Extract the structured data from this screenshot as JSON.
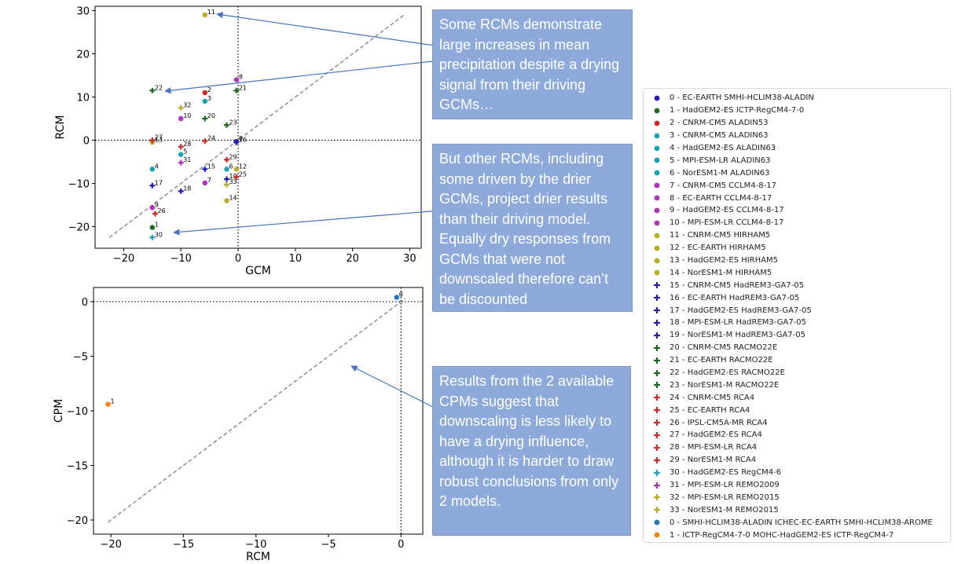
{
  "callouts": [
    "Some RCMs demonstrate large increases in mean precipitation despite a drying signal from their driving GCMs…",
    "But other RCMs, including some driven by the drier GCMs, project drier results than their driving model. Equally dry responses from GCMs that were not downscaled therefore can’t be discounted",
    "Results from the 2 available CPMs suggest that downscaling is less likely to have a drying influence, although it is harder to draw robust conclusions from only 2 models."
  ],
  "legend": [
    {
      "label": "0 - EC-EARTH SMHI-HCLIM38-ALADIN",
      "color": "#1f1fb4",
      "marker": "dot"
    },
    {
      "label": "1 - HadGEM2-ES ICTP-RegCM4-7-0",
      "color": "#1a6b1a",
      "marker": "dot"
    },
    {
      "label": "2 - CNRM-CM5 ALADIN53",
      "color": "#d62728",
      "marker": "dot"
    },
    {
      "label": "3 - CNRM-CM5 ALADIN63",
      "color": "#17a2b8",
      "marker": "dot"
    },
    {
      "label": "4 - HadGEM2-ES ALADIN63",
      "color": "#17a2b8",
      "marker": "dot"
    },
    {
      "label": "5 - MPI-ESM-LR ALADIN63",
      "color": "#17a2b8",
      "marker": "dot"
    },
    {
      "label": "6 - NorESM1-M ALADIN63",
      "color": "#17a2b8",
      "marker": "dot"
    },
    {
      "label": "7 - CNRM-CM5 CCLM4-8-17",
      "color": "#b02ec0",
      "marker": "dot"
    },
    {
      "label": "8 - EC-EARTH CCLM4-8-17",
      "color": "#b02ec0",
      "marker": "dot"
    },
    {
      "label": "9 - HadGEM2-ES CCLM4-8-17",
      "color": "#b02ec0",
      "marker": "dot"
    },
    {
      "label": "10 - MPI-ESM-LR CCLM4-8-17",
      "color": "#b02ec0",
      "marker": "dot"
    },
    {
      "label": "11 - CNRM-CM5 HIRHAM5",
      "color": "#bcaa22",
      "marker": "dot"
    },
    {
      "label": "12 - EC-EARTH HIRHAM5",
      "color": "#bcaa22",
      "marker": "dot"
    },
    {
      "label": "13 - HadGEM2-ES HIRHAM5",
      "color": "#bcaa22",
      "marker": "dot"
    },
    {
      "label": "14 - NorESM1-M HIRHAM5",
      "color": "#bcaa22",
      "marker": "dot"
    },
    {
      "label": "15 - CNRM-CM5 HadREM3-GA7-05",
      "color": "#1f1fb4",
      "marker": "plus"
    },
    {
      "label": "16 - EC-EARTH HadREM3-GA7-05",
      "color": "#1f1fb4",
      "marker": "plus"
    },
    {
      "label": "17 - HadGEM2-ES HadREM3-GA7-05",
      "color": "#1f1fb4",
      "marker": "plus"
    },
    {
      "label": "18 - MPI-ESM-LR HadREM3-GA7-05",
      "color": "#1f1fb4",
      "marker": "plus"
    },
    {
      "label": "19 - NorESM1-M HadREM3-GA7-05",
      "color": "#1f1fb4",
      "marker": "plus"
    },
    {
      "label": "20 - CNRM-CM5 RACMO22E",
      "color": "#1a6b1a",
      "marker": "plus"
    },
    {
      "label": "21 - EC-EARTH RACMO22E",
      "color": "#1a6b1a",
      "marker": "plus"
    },
    {
      "label": "22 - HadGEM2-ES RACMO22E",
      "color": "#1a6b1a",
      "marker": "plus"
    },
    {
      "label": "23 - NorESM1-M RACMO22E",
      "color": "#1a6b1a",
      "marker": "plus"
    },
    {
      "label": "24 - CNRM-CM5 RCA4",
      "color": "#d62728",
      "marker": "plus"
    },
    {
      "label": "25 - EC-EARTH RCA4",
      "color": "#d62728",
      "marker": "plus"
    },
    {
      "label": "26 - IPSL-CM5A-MR RCA4",
      "color": "#d62728",
      "marker": "plus"
    },
    {
      "label": "27 - HadGEM2-ES RCA4",
      "color": "#d62728",
      "marker": "plus"
    },
    {
      "label": "28 - MPI-ESM-LR RCA4",
      "color": "#d62728",
      "marker": "plus"
    },
    {
      "label": "29 - NorESM1-M RCA4",
      "color": "#d62728",
      "marker": "plus"
    },
    {
      "label": "30 - HadGEM2-ES RegCM4-6",
      "color": "#17a2b8",
      "marker": "plus"
    },
    {
      "label": "31 - MPI-ESM-LR REMO2009",
      "color": "#b02ec0",
      "marker": "plus"
    },
    {
      "label": "32 - MPI-ESM-LR REMO2015",
      "color": "#bcaa22",
      "marker": "plus"
    },
    {
      "label": "33 - NorESM1-M REMO2015",
      "color": "#bcaa22",
      "marker": "plus"
    },
    {
      "label": "0 - SMHI-HCLIM38-ALADIN ICHEC-EC-EARTH SMHI-HCLIM38-AROME",
      "color": "#1f77b4",
      "marker": "dot"
    },
    {
      "label": "1 - ICTP-RegCM4-7-0 MOHC-HadGEM2-ES ICTP-RegCM4-7",
      "color": "#ff7f0e",
      "marker": "dot"
    }
  ],
  "chart_data": [
    {
      "type": "scatter",
      "xlabel": "GCM",
      "ylabel": "RCM",
      "xlim": [
        -25,
        32
      ],
      "ylim": [
        -25,
        31
      ],
      "xticks": [
        -20,
        -10,
        0,
        10,
        20,
        30
      ],
      "yticks": [
        -20,
        -10,
        0,
        10,
        20,
        30
      ],
      "xtick_labels": [
        "−20",
        "−10",
        "0",
        "10",
        "20",
        "30"
      ],
      "ytick_labels": [
        "−20",
        "−10",
        "0",
        "10",
        "20",
        "30"
      ],
      "reference_line": [
        -22.5,
        29
      ],
      "points": [
        {
          "id": 0,
          "label": "0",
          "x": -0.3,
          "y": -0.3,
          "color": "#1f1fb4",
          "marker": "dot"
        },
        {
          "id": 1,
          "label": "1",
          "x": -15,
          "y": -20.2,
          "color": "#1a6b1a",
          "marker": "dot"
        },
        {
          "id": 2,
          "label": "2",
          "x": -5.8,
          "y": 11,
          "color": "#d62728",
          "marker": "dot"
        },
        {
          "id": 3,
          "label": "3",
          "x": -5.8,
          "y": 9,
          "color": "#17a2b8",
          "marker": "dot"
        },
        {
          "id": 4,
          "label": "4",
          "x": -15,
          "y": -6.7,
          "color": "#17a2b8",
          "marker": "dot"
        },
        {
          "id": 5,
          "label": "5",
          "x": -10,
          "y": -3.3,
          "color": "#17a2b8",
          "marker": "dot"
        },
        {
          "id": 6,
          "label": "6",
          "x": -2,
          "y": -6.7,
          "color": "#17a2b8",
          "marker": "dot"
        },
        {
          "id": 7,
          "label": "7",
          "x": -5.8,
          "y": -9.9,
          "color": "#b02ec0",
          "marker": "dot"
        },
        {
          "id": 8,
          "label": "8",
          "x": -0.3,
          "y": 14,
          "color": "#b02ec0",
          "marker": "dot"
        },
        {
          "id": 9,
          "label": "9",
          "x": -15,
          "y": -15.6,
          "color": "#b02ec0",
          "marker": "dot"
        },
        {
          "id": 10,
          "label": "10",
          "x": -10,
          "y": 5,
          "color": "#b02ec0",
          "marker": "dot"
        },
        {
          "id": 11,
          "label": "11",
          "x": -5.8,
          "y": 29,
          "color": "#bcaa22",
          "marker": "dot"
        },
        {
          "id": 12,
          "label": "12",
          "x": -0.3,
          "y": -6.7,
          "color": "#bcaa22",
          "marker": "dot"
        },
        {
          "id": 13,
          "label": "13",
          "x": -15,
          "y": -0.5,
          "color": "#bcaa22",
          "marker": "dot"
        },
        {
          "id": 14,
          "label": "14",
          "x": -2,
          "y": -14,
          "color": "#bcaa22",
          "marker": "dot"
        },
        {
          "id": 15,
          "label": "15",
          "x": -5.8,
          "y": -6.7,
          "color": "#1f1fb4",
          "marker": "plus"
        },
        {
          "id": 16,
          "label": "16",
          "x": -0.3,
          "y": -0.5,
          "color": "#1f1fb4",
          "marker": "plus"
        },
        {
          "id": 17,
          "label": "17",
          "x": -15,
          "y": -10.5,
          "color": "#1f1fb4",
          "marker": "plus"
        },
        {
          "id": 18,
          "label": "18",
          "x": -10,
          "y": -11.8,
          "color": "#1f1fb4",
          "marker": "plus"
        },
        {
          "id": 19,
          "label": "19",
          "x": -2,
          "y": -9,
          "color": "#1f1fb4",
          "marker": "plus"
        },
        {
          "id": 20,
          "label": "20",
          "x": -5.8,
          "y": 5,
          "color": "#1a6b1a",
          "marker": "plus"
        },
        {
          "id": 21,
          "label": "21",
          "x": -0.3,
          "y": 11.5,
          "color": "#1a6b1a",
          "marker": "plus"
        },
        {
          "id": 22,
          "label": "22",
          "x": -15,
          "y": 11.5,
          "color": "#1a6b1a",
          "marker": "plus"
        },
        {
          "id": 23,
          "label": "23",
          "x": -2,
          "y": 3.5,
          "color": "#1a6b1a",
          "marker": "plus"
        },
        {
          "id": 24,
          "label": "24",
          "x": -5.8,
          "y": -0.2,
          "color": "#d62728",
          "marker": "plus"
        },
        {
          "id": 25,
          "label": "25",
          "x": -0.3,
          "y": -8.5,
          "color": "#d62728",
          "marker": "plus"
        },
        {
          "id": 26,
          "label": "26",
          "x": -14.5,
          "y": -17,
          "color": "#d62728",
          "marker": "plus"
        },
        {
          "id": 27,
          "label": "27",
          "x": -15,
          "y": 0,
          "color": "#d62728",
          "marker": "plus"
        },
        {
          "id": 28,
          "label": "28",
          "x": -10,
          "y": -1.5,
          "color": "#d62728",
          "marker": "plus"
        },
        {
          "id": 29,
          "label": "29",
          "x": -2,
          "y": -4.5,
          "color": "#d62728",
          "marker": "plus"
        },
        {
          "id": 30,
          "label": "30",
          "x": -15,
          "y": -22.5,
          "color": "#17a2b8",
          "marker": "plus"
        },
        {
          "id": 31,
          "label": "31",
          "x": -10,
          "y": -5.2,
          "color": "#b02ec0",
          "marker": "plus"
        },
        {
          "id": 32,
          "label": "32",
          "x": -10,
          "y": 7.5,
          "color": "#bcaa22",
          "marker": "plus"
        },
        {
          "id": 33,
          "label": "33",
          "x": -2,
          "y": -10.3,
          "color": "#bcaa22",
          "marker": "plus"
        }
      ]
    },
    {
      "type": "scatter",
      "xlabel": "RCM",
      "ylabel": "CPM",
      "xlim": [
        -21.2,
        1.5
      ],
      "ylim": [
        -21.3,
        1.3
      ],
      "xticks": [
        -20,
        -15,
        -10,
        -5,
        0
      ],
      "yticks": [
        -20,
        -15,
        -10,
        -5,
        0
      ],
      "xtick_labels": [
        "−20",
        "−15",
        "−10",
        "−5",
        "0"
      ],
      "ytick_labels": [
        "−20",
        "−15",
        "−10",
        "−5",
        "0"
      ],
      "reference_line": [
        -20.2,
        0.3
      ],
      "points": [
        {
          "id": 0,
          "label": "0",
          "x": -0.3,
          "y": 0.4,
          "color": "#1f77b4",
          "marker": "dot"
        },
        {
          "id": 1,
          "label": "1",
          "x": -20.2,
          "y": -9.4,
          "color": "#ff7f0e",
          "marker": "dot"
        }
      ]
    }
  ]
}
